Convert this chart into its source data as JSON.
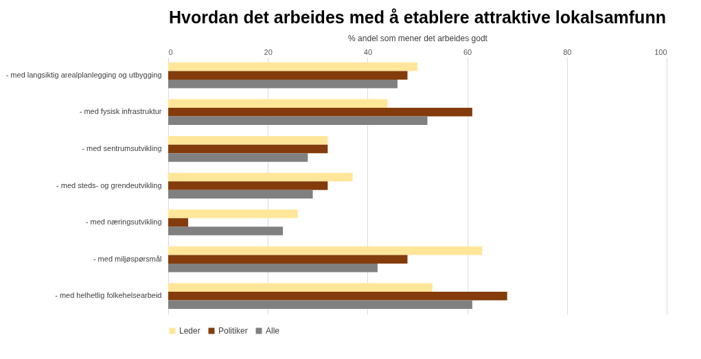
{
  "chart_data": {
    "type": "bar",
    "orientation": "horizontal",
    "title": "Hvordan det arbeides med å etablere attraktive lokalsamfunn",
    "xlabel": "% andel som mener det arbeides godt",
    "categories": [
      "- med langsiktig arealplanlegging og utbygging",
      "- med fysisk infrastruktur",
      "- med sentrumsutvikling",
      "- med steds- og grendeutvikling",
      "- med næringsutvikling",
      "- med miljøspørsmål",
      "- med helhetlig folkehelsearbeid"
    ],
    "series": [
      {
        "name": "Leder",
        "color": "#ffe699",
        "values": [
          50,
          44,
          32,
          37,
          26,
          63,
          53
        ]
      },
      {
        "name": "Politiker",
        "color": "#843c0c",
        "values": [
          48,
          61,
          32,
          32,
          4,
          48,
          68
        ]
      },
      {
        "name": "Alle",
        "color": "#808080",
        "values": [
          46,
          52,
          28,
          29,
          23,
          42,
          61
        ]
      }
    ],
    "xlim": [
      0,
      100
    ],
    "xticks": [
      0,
      20,
      40,
      60,
      80,
      100
    ],
    "grid": "x",
    "legend": "bottom"
  }
}
